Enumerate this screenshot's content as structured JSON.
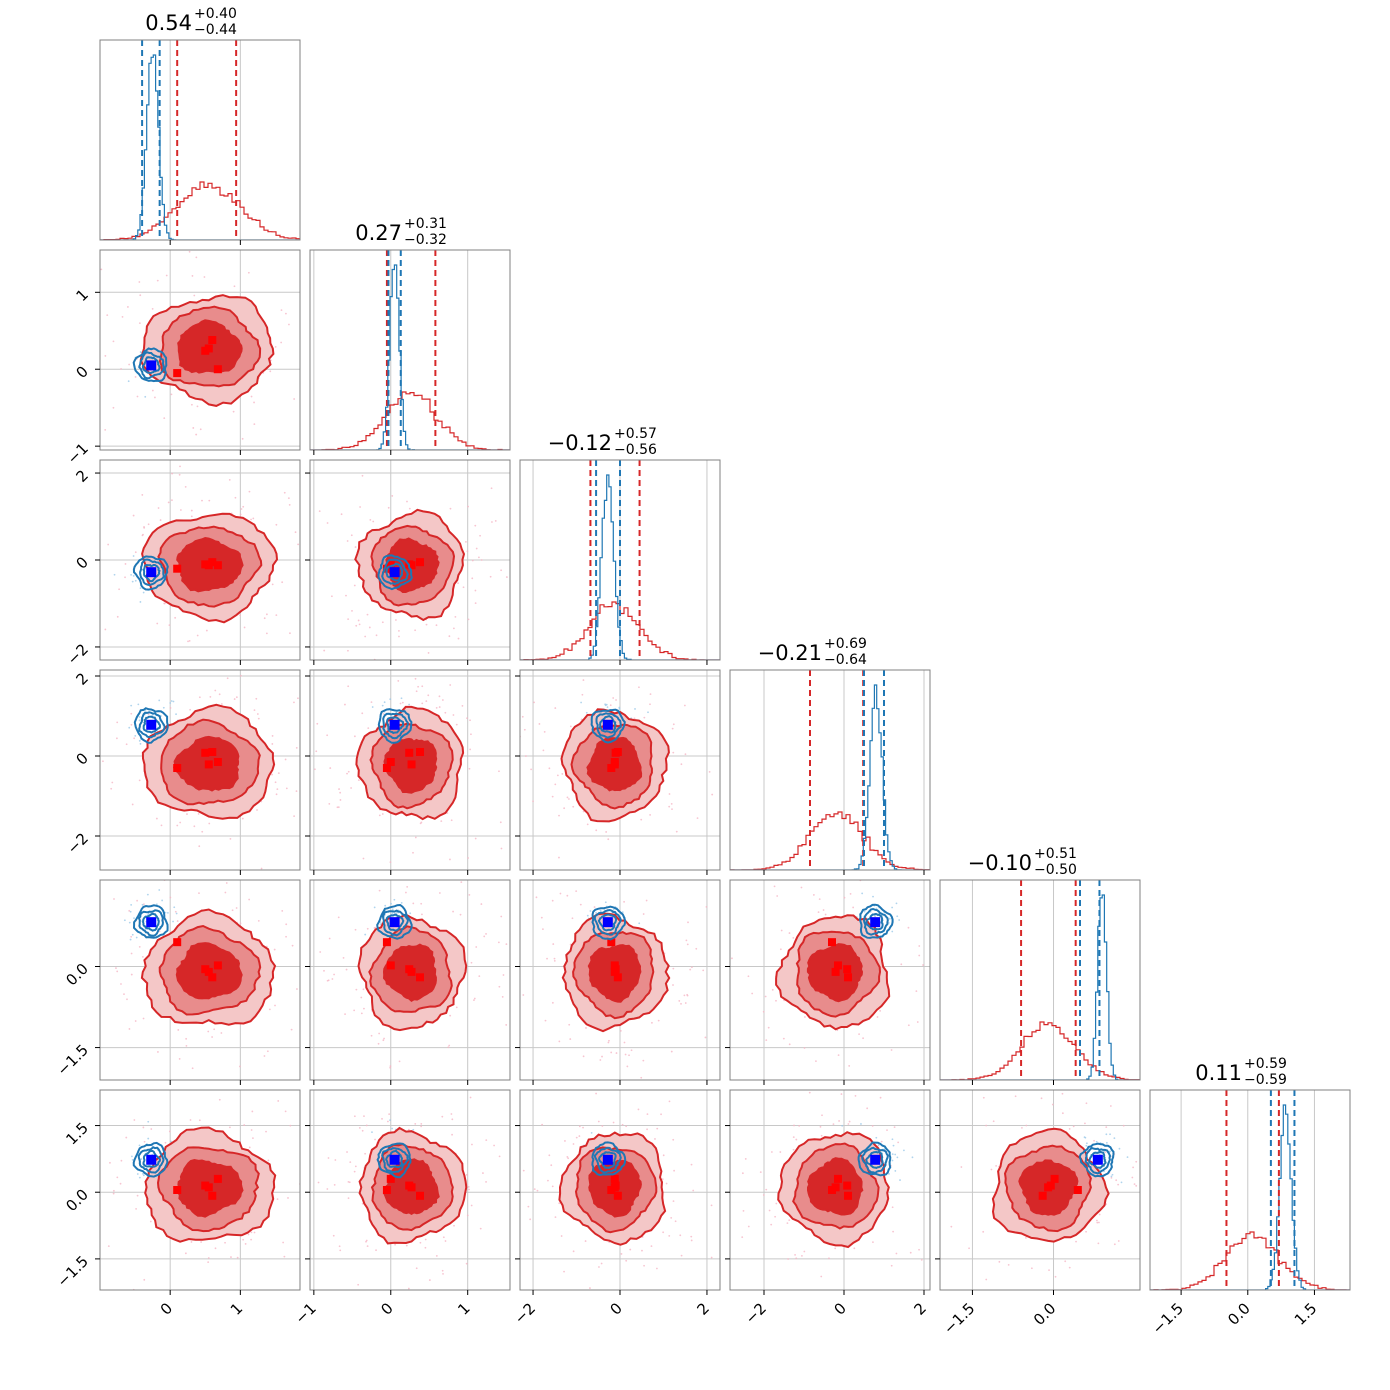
{
  "chart_data": {
    "type": "corner",
    "ndim": 6,
    "params": [
      {
        "title": {
          "median": "0.54",
          "plus": "+0.40",
          "minus": "−0.44"
        },
        "range": [
          -1.0,
          1.85
        ],
        "ticks": [
          0,
          1
        ],
        "tick_labels": [
          "0",
          "1"
        ],
        "red_hist": {
          "mean": 0.55,
          "sd": 0.45
        },
        "blue_hist": {
          "mean": -0.25,
          "sd": 0.08
        },
        "red_quantiles": [
          0.1,
          0.94
        ],
        "blue_quantiles": [
          -0.4,
          -0.15
        ],
        "red_median": 0.54
      },
      {
        "title": {
          "median": "0.27",
          "plus": "+0.31",
          "minus": "−0.32"
        },
        "range": [
          -1.05,
          1.55
        ],
        "ticks": [
          -1,
          0,
          1
        ],
        "tick_labels": [
          "−1",
          "0",
          "1"
        ],
        "red_hist": {
          "mean": 0.27,
          "sd": 0.33
        },
        "blue_hist": {
          "mean": 0.05,
          "sd": 0.06
        },
        "red_quantiles": [
          -0.05,
          0.58
        ],
        "blue_quantiles": [
          -0.03,
          0.13
        ],
        "red_median": 0.27
      },
      {
        "title": {
          "median": "−0.12",
          "plus": "+0.57",
          "minus": "−0.56"
        },
        "range": [
          -2.3,
          2.3
        ],
        "ticks": [
          -2,
          0,
          2
        ],
        "tick_labels": [
          "−2",
          "0",
          "2"
        ],
        "red_hist": {
          "mean": -0.12,
          "sd": 0.58
        },
        "blue_hist": {
          "mean": -0.28,
          "sd": 0.14
        },
        "red_quantiles": [
          -0.68,
          0.45
        ],
        "blue_quantiles": [
          -0.55,
          0.0
        ],
        "red_median": -0.12
      },
      {
        "title": {
          "median": "−0.21",
          "plus": "+0.69",
          "minus": "−0.64"
        },
        "range": [
          -2.85,
          2.15
        ],
        "ticks": [
          -2,
          0,
          2
        ],
        "tick_labels": [
          "−2",
          "0",
          "2"
        ],
        "red_hist": {
          "mean": -0.21,
          "sd": 0.66
        },
        "blue_hist": {
          "mean": 0.8,
          "sd": 0.15
        },
        "red_quantiles": [
          -0.85,
          0.48
        ],
        "blue_quantiles": [
          0.5,
          1.0
        ],
        "red_median": -0.21
      },
      {
        "title": {
          "median": "−0.10",
          "plus": "+0.51",
          "minus": "−0.50"
        },
        "range": [
          -2.1,
          1.6
        ],
        "ticks": [
          -1.5,
          0.0
        ],
        "tick_labels": [
          "−1.5",
          "0.0"
        ],
        "red_hist": {
          "mean": -0.1,
          "sd": 0.5
        },
        "blue_hist": {
          "mean": 0.9,
          "sd": 0.08
        },
        "red_quantiles": [
          -0.6,
          0.41
        ],
        "blue_quantiles": [
          0.49,
          0.85
        ],
        "red_median": -0.1
      },
      {
        "title": {
          "median": "0.11",
          "plus": "+0.59",
          "minus": "−0.59"
        },
        "range": [
          -2.2,
          2.3
        ],
        "ticks": [
          -1.5,
          0.0,
          1.5
        ],
        "tick_labels": [
          "−1.5",
          "0.0",
          "1.5"
        ],
        "red_hist": {
          "mean": 0.11,
          "sd": 0.6
        },
        "blue_hist": {
          "mean": 0.85,
          "sd": 0.13
        },
        "red_quantiles": [
          -0.48,
          0.7
        ],
        "blue_quantiles": [
          0.52,
          1.05
        ],
        "red_median": 0.11
      }
    ],
    "truth_blue": [
      -0.27,
      0.05,
      -0.28,
      0.78,
      0.82,
      0.73
    ],
    "red_points": [
      [
        0.55,
        0.5,
        0.6,
        0.68,
        0.1
      ],
      [
        0.27,
        0.24,
        0.38,
        0.0,
        -0.05
      ],
      [
        -0.12,
        -0.1,
        -0.05,
        -0.12,
        -0.2
      ],
      [
        -0.21,
        0.08,
        0.1,
        -0.15,
        -0.3
      ],
      [
        -0.1,
        -0.05,
        -0.2,
        0.02,
        0.45
      ],
      [
        0.11,
        0.15,
        -0.08,
        0.3,
        0.05
      ]
    ],
    "colors": {
      "red": "#d62728",
      "red_mid": "#e88c8c",
      "red_light": "#f4c7c7",
      "blue": "#1f77b4",
      "blue_truth": "#0000ff",
      "red_point": "#ff0000",
      "grid": "#c8c8c8"
    }
  }
}
